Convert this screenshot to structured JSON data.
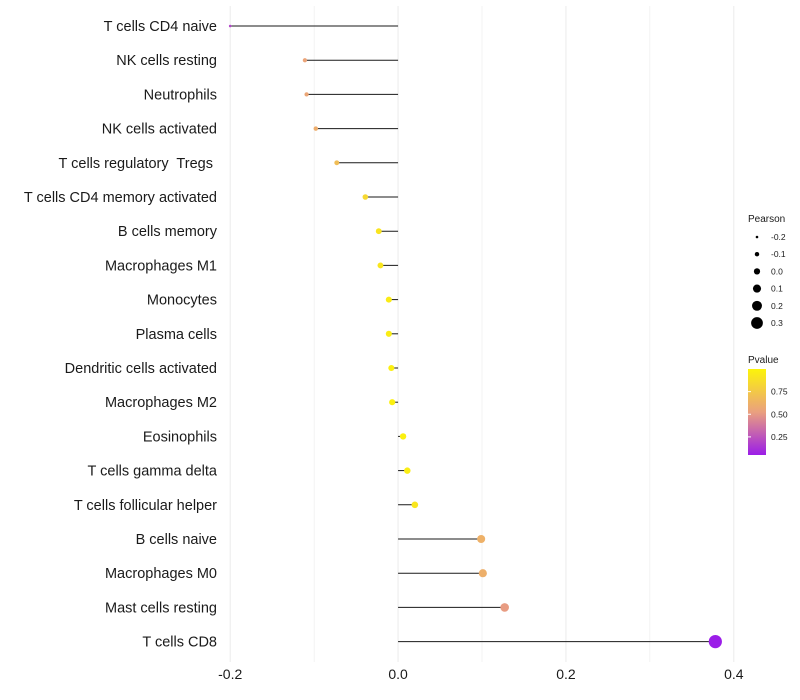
{
  "chart_data": {
    "type": "lollipop",
    "title": "",
    "xlabel": "",
    "ylabel": "",
    "xlim": [
      -0.205,
      0.405
    ],
    "x_ticks": [
      -0.2,
      0.0,
      0.2,
      0.4
    ],
    "x_tick_labels": [
      "-0.2",
      "0.0",
      "0.2",
      "0.4"
    ],
    "grid": "vertical",
    "points": [
      {
        "category": "T cells CD4 naive",
        "value": -0.2,
        "pvalue": 0.19
      },
      {
        "category": "NK cells resting",
        "value": -0.111,
        "pvalue": 0.55
      },
      {
        "category": "Neutrophils",
        "value": -0.109,
        "pvalue": 0.56
      },
      {
        "category": "NK cells activated",
        "value": -0.098,
        "pvalue": 0.6
      },
      {
        "category": "T cells regulatory  Tregs ",
        "value": -0.073,
        "pvalue": 0.69
      },
      {
        "category": "T cells CD4 memory activated",
        "value": -0.039,
        "pvalue": 0.84
      },
      {
        "category": "B cells memory",
        "value": -0.023,
        "pvalue": 0.91
      },
      {
        "category": "Macrophages M1",
        "value": -0.021,
        "pvalue": 0.92
      },
      {
        "category": "Monocytes",
        "value": -0.011,
        "pvalue": 0.95
      },
      {
        "category": "Plasma cells",
        "value": -0.011,
        "pvalue": 0.96
      },
      {
        "category": "Dendritic cells activated",
        "value": -0.008,
        "pvalue": 0.97
      },
      {
        "category": "Macrophages M2",
        "value": -0.007,
        "pvalue": 0.98
      },
      {
        "category": "Eosinophils",
        "value": 0.006,
        "pvalue": 0.98
      },
      {
        "category": "T cells gamma delta",
        "value": 0.011,
        "pvalue": 0.96
      },
      {
        "category": "T cells follicular helper",
        "value": 0.02,
        "pvalue": 0.92
      },
      {
        "category": "B cells naive",
        "value": 0.099,
        "pvalue": 0.62
      },
      {
        "category": "Macrophages M0",
        "value": 0.101,
        "pvalue": 0.61
      },
      {
        "category": "Mast cells resting",
        "value": 0.127,
        "pvalue": 0.51
      },
      {
        "category": "T cells CD8",
        "value": 0.378,
        "pvalue": 0.05
      }
    ],
    "size_legend": {
      "title": "Pearson",
      "labels": [
        "-0.2",
        "-0.1",
        "0.0",
        "0.1",
        "0.2",
        "0.3"
      ],
      "values": [
        -0.2,
        -0.1,
        0.0,
        0.1,
        0.2,
        0.3
      ]
    },
    "color_legend": {
      "title": "Pvalue",
      "labels": [
        "0.75",
        "0.50",
        "0.25"
      ],
      "values": [
        0.75,
        0.5,
        0.25
      ],
      "range": [
        0.05,
        1.0
      ],
      "low_color": "#9b1de8",
      "mid_color": "#eaa07f",
      "high_color": "#fcf40a"
    },
    "colors": {
      "stem": "#1a1a1a",
      "grid": "#ebebeb",
      "legend_dot": "#000000"
    }
  }
}
